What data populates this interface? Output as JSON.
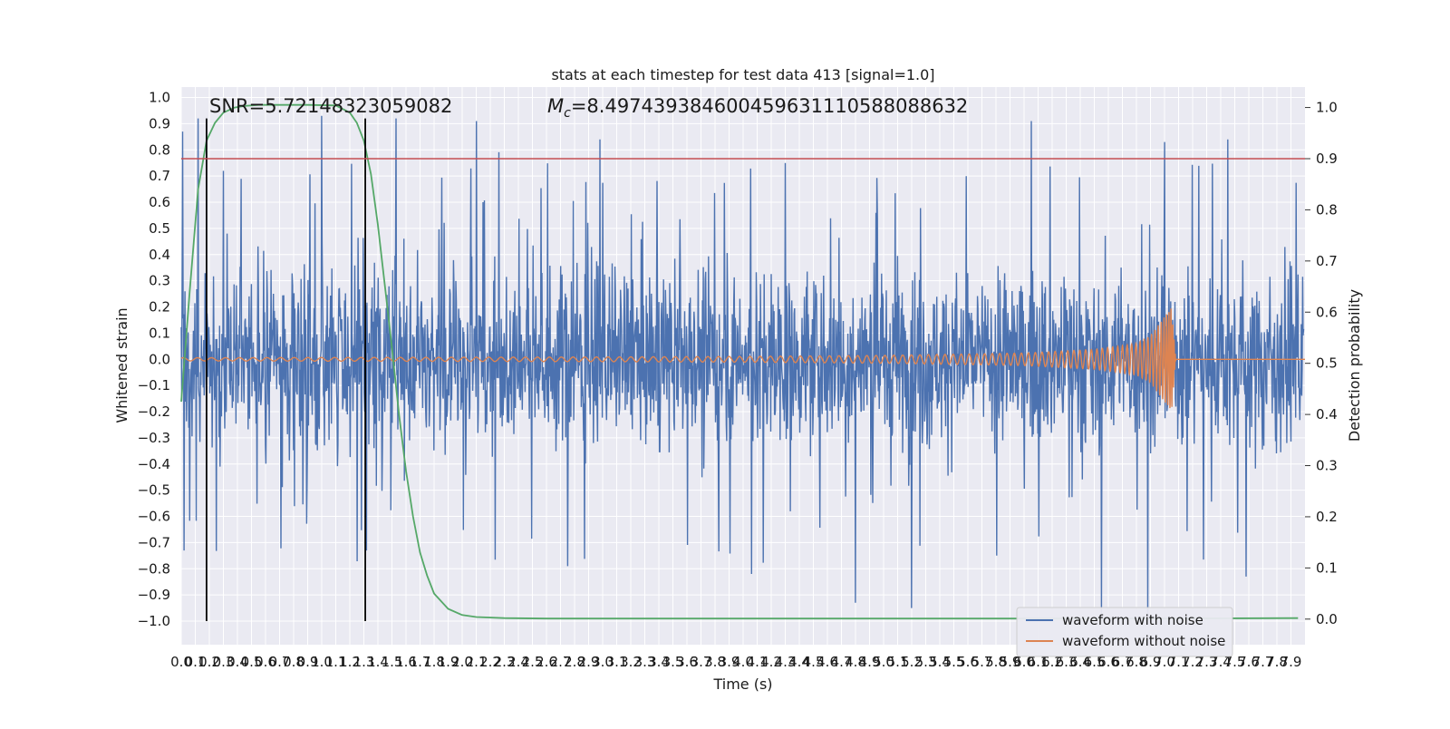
{
  "chart_data": {
    "type": "line",
    "title": "stats at each timestep for test data 413 [signal=1.0]",
    "xlabel": "Time (s)",
    "ylabel_left": "Whitened strain",
    "ylabel_right": "Detection probability",
    "xlim": [
      0.0,
      8.0
    ],
    "ylim_left": [
      -1.09,
      1.04
    ],
    "ylim_right": [
      -0.05,
      1.04
    ],
    "x_ticks": [
      "0.0",
      "0.1",
      "0.2",
      "0.3",
      "0.4",
      "0.5",
      "0.6",
      "0.7",
      "0.8",
      "0.9",
      "1.0",
      "1.1",
      "1.2",
      "1.3",
      "1.4",
      "1.5",
      "1.6",
      "1.7",
      "1.8",
      "1.9",
      "2.0",
      "2.1",
      "2.2",
      "2.3",
      "2.4",
      "2.5",
      "2.6",
      "2.7",
      "2.8",
      "2.9",
      "3.0",
      "3.1",
      "3.2",
      "3.3",
      "3.4",
      "3.5",
      "3.6",
      "3.7",
      "3.8",
      "3.9",
      "4.0",
      "4.1",
      "4.2",
      "4.3",
      "4.4",
      "4.5",
      "4.6",
      "4.7",
      "4.8",
      "4.9",
      "5.0",
      "5.1",
      "5.2",
      "5.3",
      "5.4",
      "5.5",
      "5.6",
      "5.7",
      "5.8",
      "5.9",
      "6.0",
      "6.1",
      "6.2",
      "6.3",
      "6.4",
      "6.5",
      "6.6",
      "6.7",
      "6.8",
      "6.9",
      "7.0",
      "7.1",
      "7.2",
      "7.3",
      "7.4",
      "7.5",
      "7.6",
      "7.7",
      "7.8",
      "7.9"
    ],
    "y_ticks_left": [
      "1.0",
      "0.9",
      "0.8",
      "0.7",
      "0.6",
      "0.5",
      "0.4",
      "0.3",
      "0.2",
      "0.1",
      "0.0",
      "−0.1",
      "−0.2",
      "−0.3",
      "−0.4",
      "−0.5",
      "−0.6",
      "−0.7",
      "−0.8",
      "−0.9",
      "−1.0"
    ],
    "y_ticks_right": [
      "1.0",
      "0.9",
      "0.8",
      "0.7",
      "0.6",
      "0.5",
      "0.4",
      "0.3",
      "0.2",
      "0.1",
      "0.0"
    ],
    "annotations": {
      "snr": "SNR=5.72148323059082",
      "mc_symbol": "M",
      "mc_sub": "c",
      "mc_value": "=8.497439384600459631110588088632"
    },
    "series": [
      {
        "name": "waveform with noise",
        "axis": "left",
        "color": "#4c72b0",
        "envelope_typical": 0.42,
        "peak_samples": [
          {
            "x": 0.01,
            "y": 0.87
          },
          {
            "x": 0.12,
            "y": 0.92
          },
          {
            "x": 0.3,
            "y": 0.72
          },
          {
            "x": 1.0,
            "y": 0.93
          },
          {
            "x": 1.53,
            "y": 0.92
          },
          {
            "x": 2.1,
            "y": 0.91
          },
          {
            "x": 2.98,
            "y": 0.84
          },
          {
            "x": 4.3,
            "y": 0.75
          },
          {
            "x": 6.05,
            "y": 0.91
          },
          {
            "x": 7.0,
            "y": 0.83
          },
          {
            "x": 7.45,
            "y": 0.84
          }
        ],
        "trough_samples": [
          {
            "x": 0.02,
            "y": -0.73
          },
          {
            "x": 2.75,
            "y": -0.79
          },
          {
            "x": 4.06,
            "y": -0.82
          },
          {
            "x": 4.8,
            "y": -0.93
          },
          {
            "x": 5.2,
            "y": -0.95
          },
          {
            "x": 6.55,
            "y": -0.97
          },
          {
            "x": 6.88,
            "y": -0.98
          },
          {
            "x": 7.58,
            "y": -0.83
          }
        ]
      },
      {
        "name": "waveform without noise",
        "axis": "left",
        "color": "#dd8452",
        "x": [
          0.0,
          1.0,
          2.0,
          3.0,
          4.0,
          5.0,
          6.0,
          6.5,
          6.8,
          6.9,
          7.05,
          7.08,
          8.0
        ],
        "amplitude": [
          0.006,
          0.007,
          0.008,
          0.009,
          0.011,
          0.015,
          0.024,
          0.038,
          0.06,
          0.09,
          0.2,
          0.0,
          0.0
        ]
      },
      {
        "name": "",
        "axis": "right",
        "color": "#55a868",
        "x": [
          0.0,
          0.06,
          0.12,
          0.18,
          0.24,
          0.3,
          0.38,
          0.45,
          0.55,
          0.7,
          0.9,
          1.1,
          1.2,
          1.25,
          1.3,
          1.35,
          1.4,
          1.45,
          1.5,
          1.55,
          1.6,
          1.65,
          1.7,
          1.75,
          1.8,
          1.9,
          2.0,
          2.1,
          2.3,
          2.6,
          3.0,
          4.0,
          5.0,
          6.0,
          7.0,
          7.95
        ],
        "y": [
          0.425,
          0.64,
          0.84,
          0.935,
          0.97,
          0.99,
          1.0,
          1.003,
          1.005,
          1.005,
          1.005,
          1.004,
          0.99,
          0.97,
          0.935,
          0.87,
          0.77,
          0.65,
          0.53,
          0.4,
          0.29,
          0.2,
          0.13,
          0.085,
          0.05,
          0.02,
          0.008,
          0.004,
          0.002,
          0.001,
          0.001,
          0.001,
          0.001,
          0.001,
          0.001,
          0.002
        ]
      }
    ],
    "threshold": {
      "axis": "right",
      "value": 0.9,
      "color": "#c44e52"
    },
    "vertical_markers": {
      "x": [
        0.18,
        1.31
      ],
      "color": "#000000"
    },
    "legend": {
      "placement": "lower-right",
      "entries": [
        {
          "label": "waveform with noise",
          "color": "#4c72b0"
        },
        {
          "label": "waveform without noise",
          "color": "#dd8452"
        }
      ]
    },
    "grid": true,
    "colors": {
      "axes_background": "#eaeaf2",
      "grid": "#ffffff"
    }
  }
}
